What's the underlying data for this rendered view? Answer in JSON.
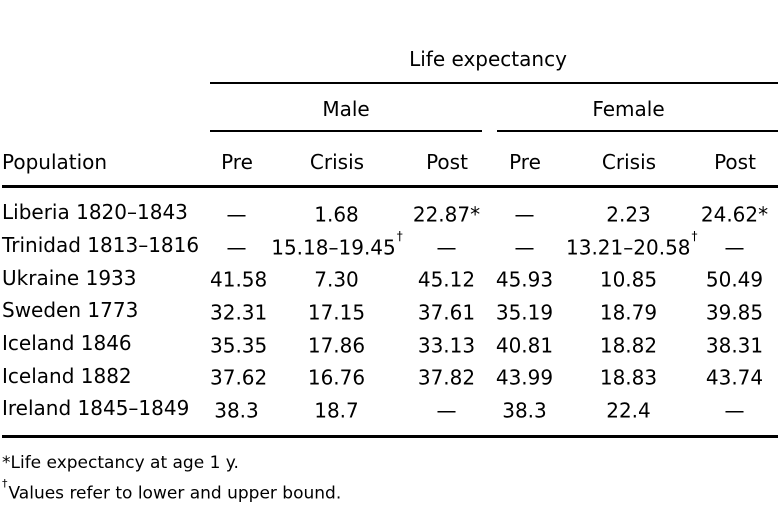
{
  "colors": {
    "background": "#ffffff",
    "text": "#000000",
    "rule": "#000000"
  },
  "table": {
    "title_spanner": "Life expectancy",
    "groups": [
      "Male",
      "Female"
    ],
    "col_headers": [
      "Population",
      "Pre",
      "Crisis",
      "Post",
      "Pre",
      "Crisis",
      "Post"
    ],
    "rows": [
      {
        "population": "Liberia 1820–1843",
        "cells": [
          {
            "v": "—",
            "s": ""
          },
          {
            "v": "1.68",
            "s": ""
          },
          {
            "v": "22.87*",
            "s": ""
          },
          {
            "v": "—",
            "s": ""
          },
          {
            "v": "2.23",
            "s": ""
          },
          {
            "v": "24.62*",
            "s": ""
          }
        ]
      },
      {
        "population": "Trinidad 1813–1816",
        "cells": [
          {
            "v": "—",
            "s": ""
          },
          {
            "v": "15.18–19.45",
            "s": "†"
          },
          {
            "v": "—",
            "s": ""
          },
          {
            "v": "—",
            "s": ""
          },
          {
            "v": "13.21–20.58",
            "s": "†"
          },
          {
            "v": "—",
            "s": ""
          }
        ]
      },
      {
        "population": "Ukraine 1933",
        "cells": [
          {
            "v": "41.58",
            "s": ""
          },
          {
            "v": "7.30",
            "s": ""
          },
          {
            "v": "45.12",
            "s": ""
          },
          {
            "v": "45.93",
            "s": ""
          },
          {
            "v": "10.85",
            "s": ""
          },
          {
            "v": "50.49",
            "s": ""
          }
        ]
      },
      {
        "population": "Sweden 1773",
        "cells": [
          {
            "v": "32.31",
            "s": ""
          },
          {
            "v": "17.15",
            "s": ""
          },
          {
            "v": "37.61",
            "s": ""
          },
          {
            "v": "35.19",
            "s": ""
          },
          {
            "v": "18.79",
            "s": ""
          },
          {
            "v": "39.85",
            "s": ""
          }
        ]
      },
      {
        "population": "Iceland 1846",
        "cells": [
          {
            "v": "35.35",
            "s": ""
          },
          {
            "v": "17.86",
            "s": ""
          },
          {
            "v": "33.13",
            "s": ""
          },
          {
            "v": "40.81",
            "s": ""
          },
          {
            "v": "18.82",
            "s": ""
          },
          {
            "v": "38.31",
            "s": ""
          }
        ]
      },
      {
        "population": "Iceland 1882",
        "cells": [
          {
            "v": "37.62",
            "s": ""
          },
          {
            "v": "16.76",
            "s": ""
          },
          {
            "v": "37.82",
            "s": ""
          },
          {
            "v": "43.99",
            "s": ""
          },
          {
            "v": "18.83",
            "s": ""
          },
          {
            "v": "43.74",
            "s": ""
          }
        ]
      },
      {
        "population": "Ireland 1845–1849",
        "cells": [
          {
            "v": "38.3",
            "s": ""
          },
          {
            "v": "18.7",
            "s": ""
          },
          {
            "v": "—",
            "s": ""
          },
          {
            "v": "38.3",
            "s": ""
          },
          {
            "v": "22.4",
            "s": ""
          },
          {
            "v": "—",
            "s": ""
          }
        ]
      }
    ]
  },
  "footnotes": [
    {
      "marker": "*",
      "text": "Life expectancy at age 1 y."
    },
    {
      "marker": "†",
      "text": "Values refer to lower and upper bound."
    }
  ]
}
